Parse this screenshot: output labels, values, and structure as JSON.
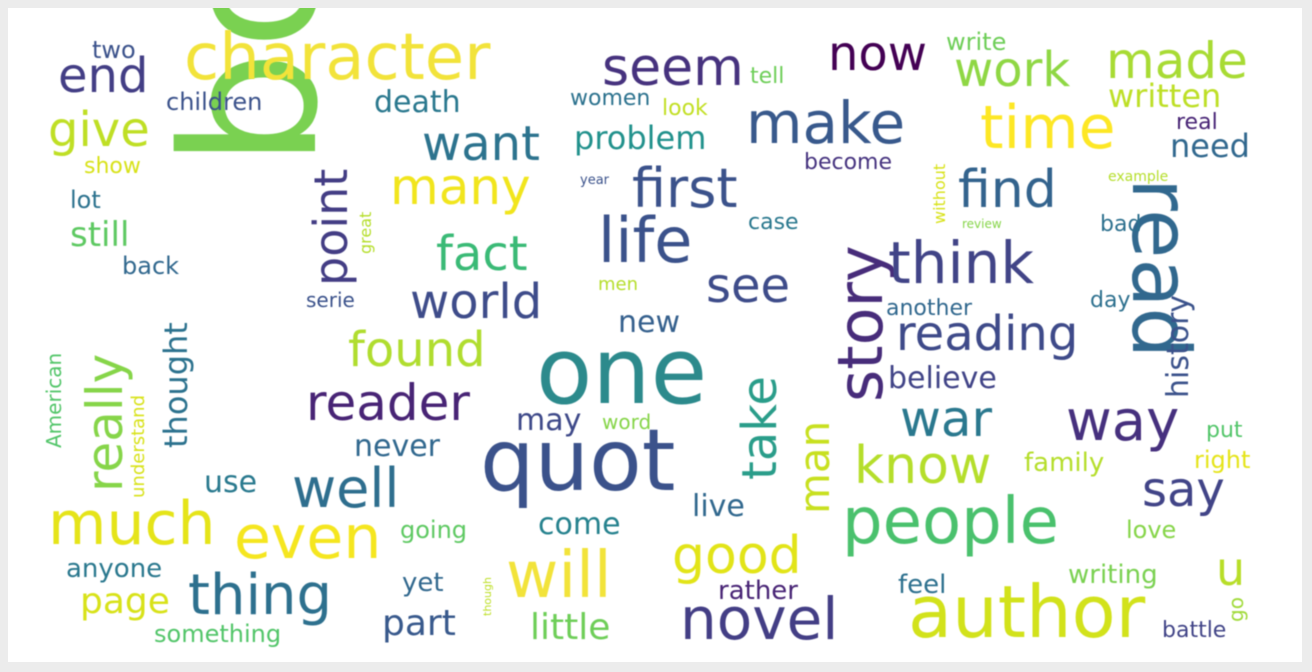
{
  "words": [
    {
      "text": "book",
      "color": "#7ad151"
    },
    {
      "text": "character",
      "color": "#f2e33a"
    },
    {
      "text": "quot",
      "color": "#3b528b"
    },
    {
      "text": "one",
      "color": "#2c8a8c"
    },
    {
      "text": "read",
      "color": "#31688e"
    },
    {
      "text": "author",
      "color": "#d2e21b"
    },
    {
      "text": "people",
      "color": "#4ac16d"
    },
    {
      "text": "story",
      "color": "#472c7a"
    },
    {
      "text": "life",
      "color": "#3b528b"
    },
    {
      "text": "will",
      "color": "#f2e33a"
    },
    {
      "text": "much",
      "color": "#e5e419"
    },
    {
      "text": "time",
      "color": "#fde725"
    },
    {
      "text": "even",
      "color": "#f5e61f"
    },
    {
      "text": "make",
      "color": "#38598c"
    },
    {
      "text": "novel",
      "color": "#433e85"
    },
    {
      "text": "seem",
      "color": "#46327e"
    },
    {
      "text": "way",
      "color": "#46307e"
    },
    {
      "text": "think",
      "color": "#414487"
    },
    {
      "text": "first",
      "color": "#3b528b"
    },
    {
      "text": "many",
      "color": "#f1e51d"
    },
    {
      "text": "reader",
      "color": "#482475"
    },
    {
      "text": "thing",
      "color": "#2d708e"
    },
    {
      "text": "work",
      "color": "#8fd744"
    },
    {
      "text": "made",
      "color": "#a8db34"
    },
    {
      "text": "really",
      "color": "#86d549"
    },
    {
      "text": "world",
      "color": "#3e4c8a"
    },
    {
      "text": "reading",
      "color": "#3e4a89"
    },
    {
      "text": "find",
      "color": "#33638d"
    },
    {
      "text": "good",
      "color": "#e2e418"
    },
    {
      "text": "know",
      "color": "#b5de2b"
    },
    {
      "text": "well",
      "color": "#2e6e8e"
    },
    {
      "text": "fact",
      "color": "#3aba76"
    },
    {
      "text": "found",
      "color": "#b0dd2f"
    },
    {
      "text": "war",
      "color": "#2a788e"
    },
    {
      "text": "want",
      "color": "#2c738e"
    },
    {
      "text": "take",
      "color": "#2a9d8a"
    },
    {
      "text": "give",
      "color": "#bfdf25"
    },
    {
      "text": "end",
      "color": "#433e85"
    },
    {
      "text": "now",
      "color": "#440154"
    },
    {
      "text": "point",
      "color": "#433d84"
    },
    {
      "text": "see",
      "color": "#3e4c8a"
    },
    {
      "text": "say",
      "color": "#414487"
    },
    {
      "text": "man",
      "color": "#c8e020"
    },
    {
      "text": "u",
      "color": "#b8de29"
    },
    {
      "text": "page",
      "color": "#d8e219"
    },
    {
      "text": "little",
      "color": "#6ece58"
    },
    {
      "text": "history",
      "color": "#3b528b"
    },
    {
      "text": "problem",
      "color": "#21918c"
    },
    {
      "text": "death",
      "color": "#2a788e"
    },
    {
      "text": "believe",
      "color": "#414487"
    },
    {
      "text": "still",
      "color": "#5ec962"
    },
    {
      "text": "written",
      "color": "#bddf26"
    },
    {
      "text": "thought",
      "color": "#2c728e"
    },
    {
      "text": "part",
      "color": "#38598c"
    },
    {
      "text": "live",
      "color": "#31688e"
    },
    {
      "text": "come",
      "color": "#26828e"
    },
    {
      "text": "never",
      "color": "#31688e"
    },
    {
      "text": "use",
      "color": "#29798e"
    },
    {
      "text": "new",
      "color": "#35608d"
    },
    {
      "text": "may",
      "color": "#3e4989"
    },
    {
      "text": "need",
      "color": "#31688e"
    },
    {
      "text": "writing",
      "color": "#7ad151"
    },
    {
      "text": "feel",
      "color": "#2d708e"
    },
    {
      "text": "rather",
      "color": "#482475"
    },
    {
      "text": "yet",
      "color": "#31688e"
    },
    {
      "text": "going",
      "color": "#5ec962"
    },
    {
      "text": "family",
      "color": "#b5de2b"
    },
    {
      "text": "love",
      "color": "#86d549"
    },
    {
      "text": "anyone",
      "color": "#2a788e"
    },
    {
      "text": "something",
      "color": "#52c569"
    },
    {
      "text": "children",
      "color": "#3b528b"
    },
    {
      "text": "two",
      "color": "#3b528b"
    },
    {
      "text": "write",
      "color": "#6ece58"
    },
    {
      "text": "tell",
      "color": "#6ece58"
    },
    {
      "text": "women",
      "color": "#2c728e"
    },
    {
      "text": "look",
      "color": "#c2df23"
    },
    {
      "text": "back",
      "color": "#31688e"
    },
    {
      "text": "lot",
      "color": "#2c728e"
    },
    {
      "text": "show",
      "color": "#d8e219"
    },
    {
      "text": "become",
      "color": "#46337f"
    },
    {
      "text": "real",
      "color": "#482475"
    },
    {
      "text": "case",
      "color": "#2a788e"
    },
    {
      "text": "another",
      "color": "#31688e"
    },
    {
      "text": "day",
      "color": "#2d708e"
    },
    {
      "text": "bad",
      "color": "#2d708e"
    },
    {
      "text": "right",
      "color": "#e5e419"
    },
    {
      "text": "put",
      "color": "#52c569"
    },
    {
      "text": "battle",
      "color": "#414487"
    },
    {
      "text": "go",
      "color": "#a0da39"
    },
    {
      "text": "American",
      "color": "#52c569"
    },
    {
      "text": "understand",
      "color": "#d8e219"
    },
    {
      "text": "serie",
      "color": "#3b528b"
    },
    {
      "text": "men",
      "color": "#b5de2b"
    },
    {
      "text": "word",
      "color": "#86d549"
    },
    {
      "text": "great",
      "color": "#b5de2b"
    },
    {
      "text": "without",
      "color": "#d8e219"
    },
    {
      "text": "example",
      "color": "#b5de2b"
    },
    {
      "text": "review",
      "color": "#86d549"
    },
    {
      "text": "year",
      "color": "#3b528b"
    },
    {
      "text": "though",
      "color": "#bddf26"
    }
  ]
}
